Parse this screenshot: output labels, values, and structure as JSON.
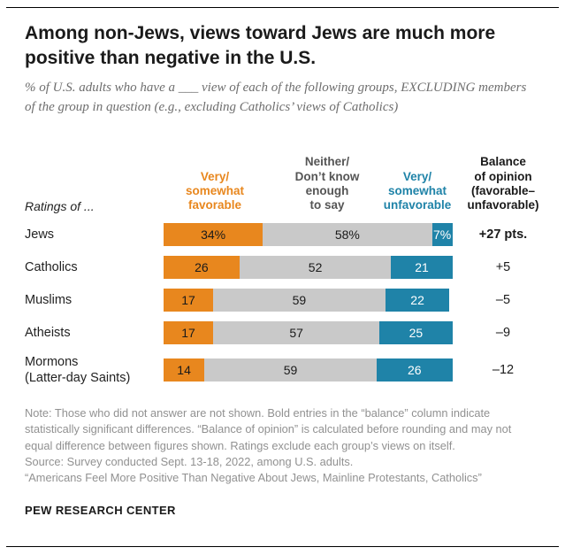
{
  "header": {
    "title": "Among non-Jews, views toward Jews are much more positive than negative in the U.S.",
    "subtitle": "% of U.S. adults who have a ___ view of each of the following groups, EXCLUDING members of the group in question (e.g., excluding Catholics’ views of Catholics)"
  },
  "chart_data": {
    "type": "bar",
    "variant": "horizontal-stacked",
    "grid": false,
    "xlim": [
      0,
      100
    ],
    "ratings_label": "Ratings of ...",
    "columns": [
      {
        "id": "favorable",
        "label": "Very/\nsomewhat\nfavorable",
        "color": "#e8871e"
      },
      {
        "id": "neither",
        "label": "Neither/\nDon’t know\nenough\nto say",
        "color": "#c9c9c9"
      },
      {
        "id": "unfavorable",
        "label": "Very/\nsomewhat\nunfavorable",
        "color": "#1f83a8"
      },
      {
        "id": "balance",
        "label": "Balance\nof opinion\n(favorable–\nunfavorable)",
        "color": "#1a1a1a"
      }
    ],
    "rows": [
      {
        "label": "Jews",
        "values": [
          34,
          58,
          7
        ],
        "display": [
          "34%",
          "58%",
          "7%"
        ],
        "balance": "+27 pts.",
        "balance_bold": true
      },
      {
        "label": "Catholics",
        "values": [
          26,
          52,
          21
        ],
        "display": [
          "26",
          "52",
          "21"
        ],
        "balance": "+5",
        "balance_bold": false
      },
      {
        "label": "Muslims",
        "values": [
          17,
          59,
          22
        ],
        "display": [
          "17",
          "59",
          "22"
        ],
        "balance": "–5",
        "balance_bold": false
      },
      {
        "label": "Atheists",
        "values": [
          17,
          57,
          25
        ],
        "display": [
          "17",
          "57",
          "25"
        ],
        "balance": "–9",
        "balance_bold": false
      },
      {
        "label": "Mormons\n(Latter-day Saints)",
        "values": [
          14,
          59,
          26
        ],
        "display": [
          "14",
          "59",
          "26"
        ],
        "balance": "–12",
        "balance_bold": false
      }
    ]
  },
  "footer": {
    "note": "Note: Those who did not answer are not shown. Bold entries in the “balance” column indicate statistically significant differences. “Balance of opinion” is calculated before rounding and may not equal difference between figures shown. Ratings exclude each group’s views on itself.",
    "source": "Source: Survey conducted Sept. 13-18, 2022, among U.S. adults.",
    "report": "“Americans Feel More Positive Than Negative About Jews, Mainline Protestants, Catholics”",
    "brand": "PEW RESEARCH CENTER"
  }
}
